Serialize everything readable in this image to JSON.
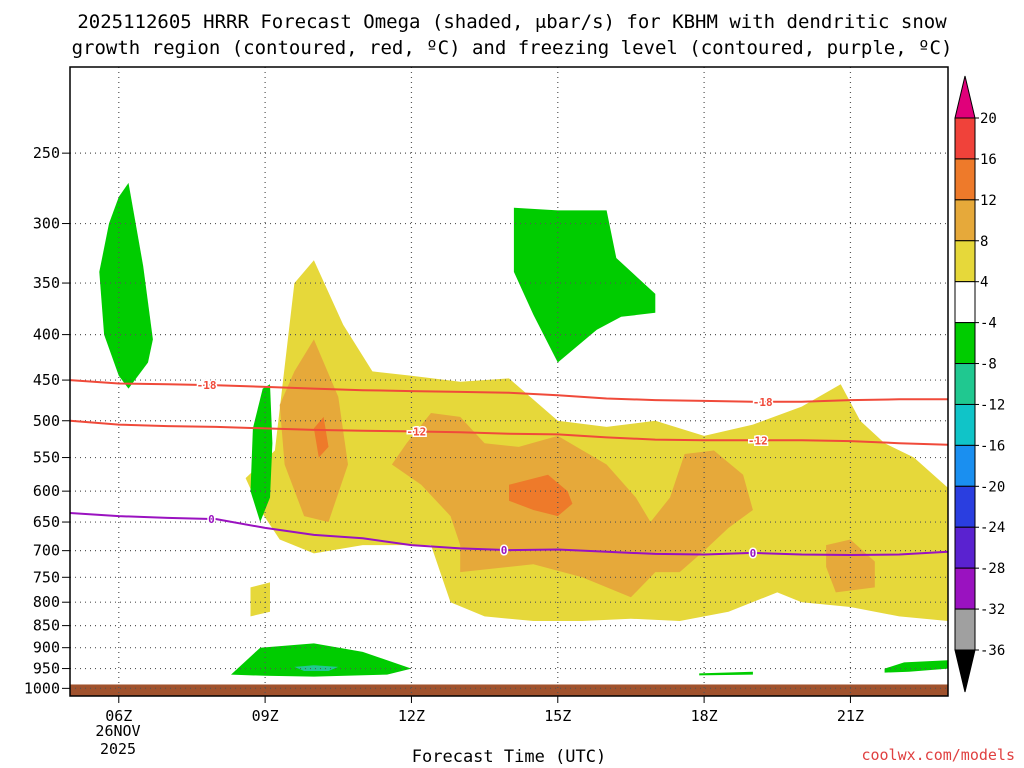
{
  "title": {
    "line1": "2025112605 HRRR Forecast Omega (shaded, μbar/s) for KBHM with dendritic snow",
    "line2": "growth region (contoured, red, ºC) and freezing level (contoured, purple, ºC)"
  },
  "xaxis": {
    "title": "Forecast Time (UTC)",
    "ticks": [
      "06Z",
      "09Z",
      "12Z",
      "15Z",
      "18Z",
      "21Z"
    ],
    "date_line1": "26NOV",
    "date_line2": "2025"
  },
  "credit": "coolwx.com/models",
  "colors": {
    "ground": "#a0522d",
    "dgz": "#f04a3a",
    "freezing": "#9a12c0",
    "grid": "#555555"
  },
  "colorbar": {
    "labels": [
      "20",
      "16",
      "12",
      "8",
      "4",
      "-4",
      "-8",
      "-12",
      "-16",
      "-20",
      "-24",
      "-28",
      "-32",
      "-36"
    ],
    "top_arrow_color": "#e0007a",
    "bottom_arrow_color": "#000000",
    "bands": [
      {
        "from": 16,
        "to": 20,
        "color": "#f0423a"
      },
      {
        "from": 12,
        "to": 16,
        "color": "#ee7a2a"
      },
      {
        "from": 8,
        "to": 12,
        "color": "#e6a93a"
      },
      {
        "from": 4,
        "to": 8,
        "color": "#e6d83a"
      },
      {
        "from": -4,
        "to": 4,
        "color": "#ffffff"
      },
      {
        "from": -8,
        "to": -4,
        "color": "#00cc00"
      },
      {
        "from": -12,
        "to": -8,
        "color": "#20c890"
      },
      {
        "from": -16,
        "to": -12,
        "color": "#10c4c8"
      },
      {
        "from": -20,
        "to": -16,
        "color": "#1a8ff0"
      },
      {
        "from": -24,
        "to": -20,
        "color": "#2a3ee0"
      },
      {
        "from": -28,
        "to": -24,
        "color": "#5a22d0"
      },
      {
        "from": -32,
        "to": -28,
        "color": "#9a12c0"
      },
      {
        "from": -36,
        "to": -32,
        "color": "#a0a0a0"
      }
    ]
  },
  "chart_data": {
    "type": "heatmap",
    "x_range_hours": [
      5,
      23
    ],
    "x_ticks_hours": [
      6,
      9,
      12,
      15,
      18,
      21
    ],
    "y_levels_hPa": [
      250,
      300,
      350,
      400,
      450,
      500,
      550,
      600,
      650,
      700,
      750,
      800,
      850,
      900,
      950,
      1000
    ],
    "y_range_hPa": [
      200,
      1020
    ],
    "y_scale": "log",
    "grid": true,
    "omega_regions": [
      {
        "band": "4-8",
        "pts": [
          [
            8.6,
            580
          ],
          [
            9.2,
            540
          ],
          [
            9.6,
            350
          ],
          [
            10.0,
            330
          ],
          [
            10.6,
            390
          ],
          [
            11.2,
            440
          ],
          [
            12.0,
            445
          ],
          [
            13.0,
            452
          ],
          [
            14.0,
            448
          ],
          [
            15.0,
            500
          ],
          [
            16.0,
            508
          ],
          [
            17.0,
            500
          ],
          [
            18.0,
            520
          ],
          [
            19.0,
            505
          ],
          [
            20.0,
            482
          ],
          [
            20.8,
            455
          ],
          [
            21.2,
            500
          ],
          [
            21.7,
            530
          ],
          [
            22.3,
            550
          ],
          [
            23.0,
            595
          ],
          [
            23.0,
            840
          ],
          [
            22.0,
            830
          ],
          [
            21.0,
            810
          ],
          [
            20.0,
            800
          ],
          [
            19.5,
            780
          ],
          [
            18.5,
            820
          ],
          [
            17.5,
            840
          ],
          [
            16.5,
            835
          ],
          [
            15.5,
            840
          ],
          [
            14.5,
            840
          ],
          [
            13.5,
            830
          ],
          [
            12.8,
            800
          ],
          [
            12.4,
            690
          ],
          [
            11.0,
            690
          ],
          [
            10.0,
            705
          ],
          [
            9.3,
            680
          ],
          [
            8.9,
            630
          ],
          [
            8.6,
            580
          ]
        ]
      },
      {
        "band": "4-8",
        "pts": [
          [
            8.7,
            770
          ],
          [
            9.1,
            760
          ],
          [
            9.1,
            820
          ],
          [
            8.7,
            830
          ],
          [
            8.7,
            770
          ]
        ]
      },
      {
        "band": "8-12",
        "pts": [
          [
            9.3,
            480
          ],
          [
            9.6,
            440
          ],
          [
            10.0,
            405
          ],
          [
            10.5,
            470
          ],
          [
            10.7,
            560
          ],
          [
            10.3,
            650
          ],
          [
            9.8,
            640
          ],
          [
            9.4,
            560
          ],
          [
            9.3,
            480
          ]
        ]
      },
      {
        "band": "8-12",
        "pts": [
          [
            11.6,
            560
          ],
          [
            11.9,
            530
          ],
          [
            12.4,
            490
          ],
          [
            13.0,
            495
          ],
          [
            13.5,
            530
          ],
          [
            14.2,
            535
          ],
          [
            15.0,
            520
          ],
          [
            16.0,
            560
          ],
          [
            16.6,
            610
          ],
          [
            16.9,
            650
          ],
          [
            17.3,
            610
          ],
          [
            17.6,
            545
          ],
          [
            18.2,
            540
          ],
          [
            18.8,
            575
          ],
          [
            19.0,
            630
          ],
          [
            18.5,
            660
          ],
          [
            18.0,
            700
          ],
          [
            17.5,
            740
          ],
          [
            17.0,
            740
          ],
          [
            16.5,
            790
          ],
          [
            15.5,
            750
          ],
          [
            14.5,
            725
          ],
          [
            13.0,
            740
          ],
          [
            13.0,
            690
          ],
          [
            12.8,
            640
          ],
          [
            12.2,
            590
          ],
          [
            11.6,
            560
          ]
        ]
      },
      {
        "band": "8-12",
        "pts": [
          [
            20.5,
            690
          ],
          [
            21.0,
            680
          ],
          [
            21.5,
            720
          ],
          [
            21.5,
            770
          ],
          [
            20.7,
            780
          ],
          [
            20.5,
            730
          ],
          [
            20.5,
            690
          ]
        ]
      },
      {
        "band": "12-16",
        "pts": [
          [
            10.0,
            510
          ],
          [
            10.2,
            495
          ],
          [
            10.3,
            535
          ],
          [
            10.1,
            550
          ],
          [
            10.0,
            510
          ]
        ]
      },
      {
        "band": "12-16",
        "pts": [
          [
            14.0,
            590
          ],
          [
            14.8,
            575
          ],
          [
            15.2,
            600
          ],
          [
            15.3,
            620
          ],
          [
            15.0,
            640
          ],
          [
            14.5,
            630
          ],
          [
            14.0,
            615
          ],
          [
            14.0,
            590
          ]
        ]
      },
      {
        "band": "-8--4",
        "pts": [
          [
            6.0,
            280
          ],
          [
            6.2,
            270
          ],
          [
            6.5,
            335
          ],
          [
            6.7,
            405
          ],
          [
            6.6,
            430
          ],
          [
            6.2,
            460
          ],
          [
            6.0,
            445
          ],
          [
            5.7,
            400
          ],
          [
            5.6,
            340
          ],
          [
            5.8,
            300
          ],
          [
            6.0,
            280
          ]
        ]
      },
      {
        "band": "-8--4",
        "pts": [
          [
            8.95,
            460
          ],
          [
            9.1,
            455
          ],
          [
            9.15,
            530
          ],
          [
            9.1,
            610
          ],
          [
            8.9,
            650
          ],
          [
            8.7,
            600
          ],
          [
            8.75,
            510
          ],
          [
            8.95,
            460
          ]
        ]
      },
      {
        "band": "-8--4",
        "pts": [
          [
            14.1,
            288
          ],
          [
            15.0,
            290
          ],
          [
            16.0,
            290
          ],
          [
            16.2,
            328
          ],
          [
            17.0,
            360
          ],
          [
            17.0,
            378
          ],
          [
            16.3,
            382
          ],
          [
            15.8,
            395
          ],
          [
            15.0,
            430
          ],
          [
            14.5,
            380
          ],
          [
            14.1,
            340
          ],
          [
            14.1,
            288
          ]
        ]
      },
      {
        "band": "-8--4",
        "pts": [
          [
            8.3,
            965
          ],
          [
            8.9,
            900
          ],
          [
            10.0,
            890
          ],
          [
            11.0,
            910
          ],
          [
            12.0,
            950
          ],
          [
            11.5,
            965
          ],
          [
            10.0,
            970
          ],
          [
            9.0,
            968
          ],
          [
            8.3,
            965
          ]
        ]
      },
      {
        "band": "-8--4",
        "pts": [
          [
            17.9,
            962
          ],
          [
            19.0,
            958
          ],
          [
            19.0,
            965
          ],
          [
            17.9,
            967
          ],
          [
            17.9,
            962
          ]
        ]
      },
      {
        "band": "-8--4",
        "pts": [
          [
            21.7,
            950
          ],
          [
            22.1,
            935
          ],
          [
            23.0,
            930
          ],
          [
            23.0,
            950
          ],
          [
            22.2,
            958
          ],
          [
            21.7,
            960
          ],
          [
            21.7,
            950
          ]
        ]
      },
      {
        "band": "-12--8",
        "pts": [
          [
            9.6,
            946
          ],
          [
            10.0,
            942
          ],
          [
            10.5,
            946
          ],
          [
            10.3,
            956
          ],
          [
            9.8,
            956
          ],
          [
            9.6,
            946
          ]
        ]
      }
    ],
    "dgz_contours": [
      {
        "label": "-18",
        "pts": [
          [
            5.0,
            450
          ],
          [
            6.0,
            454
          ],
          [
            7.0,
            455
          ],
          [
            8.0,
            456
          ],
          [
            9.0,
            458
          ],
          [
            10.0,
            460
          ],
          [
            11.0,
            462
          ],
          [
            12.0,
            463
          ],
          [
            13.0,
            464
          ],
          [
            14.0,
            465
          ],
          [
            15.0,
            468
          ],
          [
            16.0,
            472
          ],
          [
            17.0,
            474
          ],
          [
            18.0,
            475
          ],
          [
            19.0,
            476
          ],
          [
            20.0,
            476
          ],
          [
            21.0,
            474
          ],
          [
            22.0,
            473
          ],
          [
            23.0,
            473
          ]
        ],
        "label_hours": [
          7.8,
          19.2
        ]
      },
      {
        "label": "-12",
        "pts": [
          [
            5.0,
            500
          ],
          [
            6.0,
            505
          ],
          [
            7.0,
            507
          ],
          [
            8.0,
            508
          ],
          [
            9.0,
            510
          ],
          [
            10.0,
            512
          ],
          [
            11.0,
            513
          ],
          [
            12.0,
            514
          ],
          [
            13.0,
            515
          ],
          [
            14.0,
            517
          ],
          [
            15.0,
            518
          ],
          [
            16.0,
            522
          ],
          [
            17.0,
            525
          ],
          [
            18.0,
            526
          ],
          [
            19.0,
            526
          ],
          [
            20.0,
            526
          ],
          [
            21.0,
            527
          ],
          [
            22.0,
            530
          ],
          [
            23.0,
            532
          ]
        ],
        "label_hours": [
          12.1,
          19.1
        ]
      }
    ],
    "freezing_level_contour": {
      "label": "0",
      "label_hours": [
        7.9,
        13.9,
        19.0
      ],
      "pts": [
        [
          5.0,
          635
        ],
        [
          6.0,
          640
        ],
        [
          7.0,
          643
        ],
        [
          8.0,
          645
        ],
        [
          9.0,
          660
        ],
        [
          10.0,
          672
        ],
        [
          11.0,
          678
        ],
        [
          12.0,
          690
        ],
        [
          13.0,
          696
        ],
        [
          14.0,
          699
        ],
        [
          15.0,
          698
        ],
        [
          16.0,
          702
        ],
        [
          17.0,
          706
        ],
        [
          18.0,
          707
        ],
        [
          19.0,
          704
        ],
        [
          20.0,
          707
        ],
        [
          21.0,
          708
        ],
        [
          22.0,
          707
        ],
        [
          23.0,
          702
        ]
      ]
    },
    "surface_pressure_hPa": 990
  }
}
